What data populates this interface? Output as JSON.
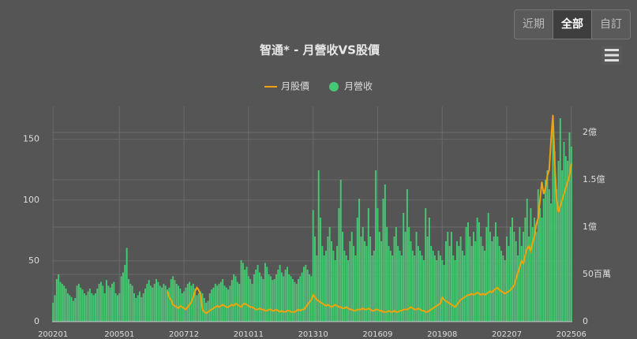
{
  "controls": {
    "buttons": [
      "近期",
      "全部",
      "自訂"
    ],
    "active": 1
  },
  "chart_data": {
    "type": "combo",
    "title": "智通* - 月營收VS股價",
    "categories": [
      "200201",
      null,
      null,
      null,
      null,
      null,
      null,
      null,
      null,
      null,
      null,
      null,
      null,
      null,
      null,
      null,
      null,
      null,
      null,
      null,
      null,
      null,
      null,
      null,
      null,
      null,
      null,
      null,
      null,
      null,
      null,
      null,
      null,
      null,
      null,
      null,
      "200501",
      null,
      null,
      null,
      null,
      null,
      null,
      null,
      null,
      null,
      null,
      null,
      null,
      null,
      null,
      null,
      null,
      null,
      null,
      null,
      null,
      null,
      null,
      null,
      null,
      null,
      null,
      null,
      null,
      null,
      null,
      null,
      null,
      null,
      null,
      "200712",
      null,
      null,
      null,
      null,
      null,
      null,
      null,
      null,
      null,
      null,
      null,
      null,
      null,
      null,
      null,
      null,
      null,
      null,
      null,
      null,
      null,
      null,
      null,
      null,
      null,
      null,
      null,
      null,
      null,
      null,
      null,
      null,
      null,
      null,
      "201011",
      null,
      null,
      null,
      null,
      null,
      null,
      null,
      null,
      null,
      null,
      null,
      null,
      null,
      null,
      null,
      null,
      null,
      null,
      null,
      null,
      null,
      null,
      null,
      null,
      null,
      null,
      null,
      null,
      null,
      null,
      null,
      null,
      null,
      null,
      "201310",
      null,
      null,
      null,
      null,
      null,
      null,
      null,
      null,
      null,
      null,
      null,
      null,
      null,
      null,
      null,
      null,
      null,
      null,
      null,
      null,
      null,
      null,
      null,
      null,
      null,
      null,
      null,
      null,
      null,
      null,
      null,
      null,
      null,
      null,
      "201609",
      null,
      null,
      null,
      null,
      null,
      null,
      null,
      null,
      null,
      null,
      null,
      null,
      null,
      null,
      null,
      null,
      null,
      null,
      null,
      null,
      null,
      null,
      null,
      null,
      null,
      null,
      null,
      null,
      null,
      null,
      null,
      null,
      null,
      null,
      "201908",
      null,
      null,
      null,
      null,
      null,
      null,
      null,
      null,
      null,
      null,
      null,
      null,
      null,
      null,
      null,
      null,
      null,
      null,
      null,
      null,
      null,
      null,
      null,
      null,
      null,
      null,
      null,
      null,
      null,
      null,
      null,
      null,
      null,
      null,
      "202207",
      null,
      null,
      null,
      null,
      null,
      null,
      null,
      null,
      null,
      null,
      null,
      null,
      null,
      null,
      null,
      null,
      null,
      null,
      null,
      null,
      null,
      null,
      null,
      null,
      null,
      null,
      null,
      null,
      null,
      null,
      null,
      null,
      null,
      null,
      "202506"
    ],
    "series": [
      {
        "name": "月股價",
        "type": "line",
        "color": "#f0a30a",
        "values": [
          null,
          null,
          null,
          null,
          null,
          null,
          null,
          null,
          null,
          null,
          null,
          null,
          null,
          null,
          null,
          null,
          null,
          null,
          null,
          null,
          null,
          null,
          null,
          null,
          null,
          null,
          null,
          null,
          null,
          null,
          null,
          null,
          null,
          null,
          null,
          null,
          null,
          null,
          null,
          null,
          null,
          null,
          null,
          null,
          null,
          null,
          null,
          null,
          null,
          null,
          null,
          null,
          null,
          null,
          null,
          null,
          null,
          null,
          null,
          null,
          null,
          null,
          25,
          20,
          18,
          14,
          13,
          12,
          11,
          13,
          12,
          11,
          10,
          12,
          14,
          16,
          20,
          25,
          28,
          26,
          22,
          10,
          8,
          7,
          8,
          9,
          10,
          11,
          12,
          13,
          12,
          13,
          14,
          13,
          12,
          12,
          13,
          14,
          13,
          15,
          14,
          13,
          12,
          14,
          15,
          14,
          13,
          12,
          12,
          11,
          10,
          10,
          11,
          10,
          10,
          9,
          9,
          10,
          10,
          9,
          9,
          10,
          9,
          8,
          9,
          8,
          8,
          9,
          9,
          8,
          8,
          8,
          9,
          10,
          9,
          10,
          10,
          12,
          14,
          16,
          18,
          22,
          20,
          18,
          17,
          16,
          15,
          14,
          13,
          14,
          13,
          12,
          13,
          14,
          13,
          12,
          12,
          11,
          11,
          12,
          11,
          10,
          10,
          9,
          9,
          10,
          10,
          10,
          11,
          10,
          10,
          11,
          10,
          9,
          9,
          10,
          10,
          9,
          9,
          8,
          8,
          8,
          9,
          8,
          8,
          9,
          8,
          8,
          9,
          9,
          10,
          10,
          10,
          11,
          12,
          11,
          10,
          10,
          11,
          10,
          9,
          9,
          8,
          8,
          9,
          10,
          11,
          12,
          13,
          14,
          15,
          20,
          18,
          17,
          16,
          15,
          14,
          13,
          12,
          14,
          16,
          18,
          19,
          20,
          21,
          22,
          22,
          23,
          22,
          23,
          24,
          23,
          22,
          23,
          22,
          23,
          24,
          25,
          24,
          26,
          27,
          28,
          26,
          25,
          24,
          23,
          24,
          25,
          26,
          28,
          30,
          35,
          40,
          45,
          50,
          48,
          55,
          60,
          62,
          58,
          65,
          70,
          80,
          85,
          100,
          115,
          105,
          110,
          120,
          125,
          150,
          170,
          130,
          100,
          90,
          95,
          100,
          105,
          110,
          115,
          120,
          130
        ]
      },
      {
        "name": "月營收",
        "type": "bar",
        "axis": "y2",
        "color": "#48c774",
        "values": [
          20,
          28,
          45,
          50,
          42,
          40,
          38,
          35,
          30,
          28,
          26,
          22,
          25,
          38,
          40,
          36,
          34,
          30,
          28,
          32,
          35,
          30,
          28,
          30,
          35,
          40,
          42,
          38,
          30,
          44,
          38,
          36,
          40,
          42,
          30,
          28,
          30,
          48,
          52,
          60,
          78,
          45,
          40,
          38,
          30,
          25,
          28,
          32,
          26,
          30,
          35,
          40,
          44,
          38,
          36,
          40,
          45,
          42,
          38,
          36,
          40,
          38,
          34,
          36,
          45,
          48,
          44,
          40,
          38,
          35,
          30,
          32,
          36,
          40,
          42,
          38,
          40,
          35,
          28,
          30,
          32,
          30,
          25,
          20,
          22,
          30,
          34,
          36,
          40,
          38,
          40,
          42,
          45,
          38,
          36,
          34,
          38,
          44,
          50,
          48,
          42,
          40,
          65,
          62,
          55,
          58,
          48,
          45,
          40,
          50,
          55,
          60,
          52,
          48,
          45,
          62,
          58,
          50,
          48,
          44,
          45,
          50,
          55,
          60,
          52,
          48,
          55,
          58,
          50,
          48,
          45,
          42,
          40,
          45,
          48,
          52,
          58,
          60,
          55,
          50,
          48,
          118,
          90,
          70,
          160,
          110,
          80,
          70,
          75,
          90,
          100,
          85,
          75,
          65,
          80,
          120,
          150,
          95,
          75,
          70,
          65,
          85,
          95,
          80,
          70,
          110,
          130,
          90,
          100,
          85,
          80,
          120,
          90,
          70,
          75,
          160,
          120,
          95,
          85,
          130,
          145,
          100,
          80,
          75,
          70,
          90,
          100,
          80,
          75,
          70,
          115,
          95,
          140,
          100,
          85,
          75,
          70,
          95,
          80,
          75,
          70,
          65,
          120,
          90,
          110,
          80,
          75,
          70,
          65,
          75,
          70,
          65,
          60,
          85,
          95,
          80,
          95,
          70,
          65,
          85,
          80,
          90,
          75,
          70,
          100,
          105,
          90,
          80,
          95,
          85,
          110,
          105,
          90,
          80,
          75,
          100,
          115,
          95,
          85,
          90,
          105,
          90,
          80,
          75,
          70,
          65,
          90,
          80,
          100,
          110,
          95,
          85,
          70,
          100,
          80,
          95,
          110,
          130,
          90,
          120,
          100,
          110,
          95,
          140,
          120,
          110,
          130,
          150,
          160,
          140,
          125,
          210,
          180,
          140,
          170,
          215,
          160,
          190,
          175,
          170,
          200,
          185
        ]
      }
    ],
    "ylim": [
      0,
      177
    ],
    "yticks": [
      0,
      50,
      100,
      150
    ],
    "y2lim": [
      0,
      227.5
    ],
    "y2ticks": [
      0,
      {
        "value": 50,
        "label": "50百萬"
      },
      {
        "value": 100,
        "label": "1億"
      },
      {
        "value": 150,
        "label": "1.5億"
      },
      {
        "value": 200,
        "label": "2億"
      }
    ],
    "grid": true
  }
}
